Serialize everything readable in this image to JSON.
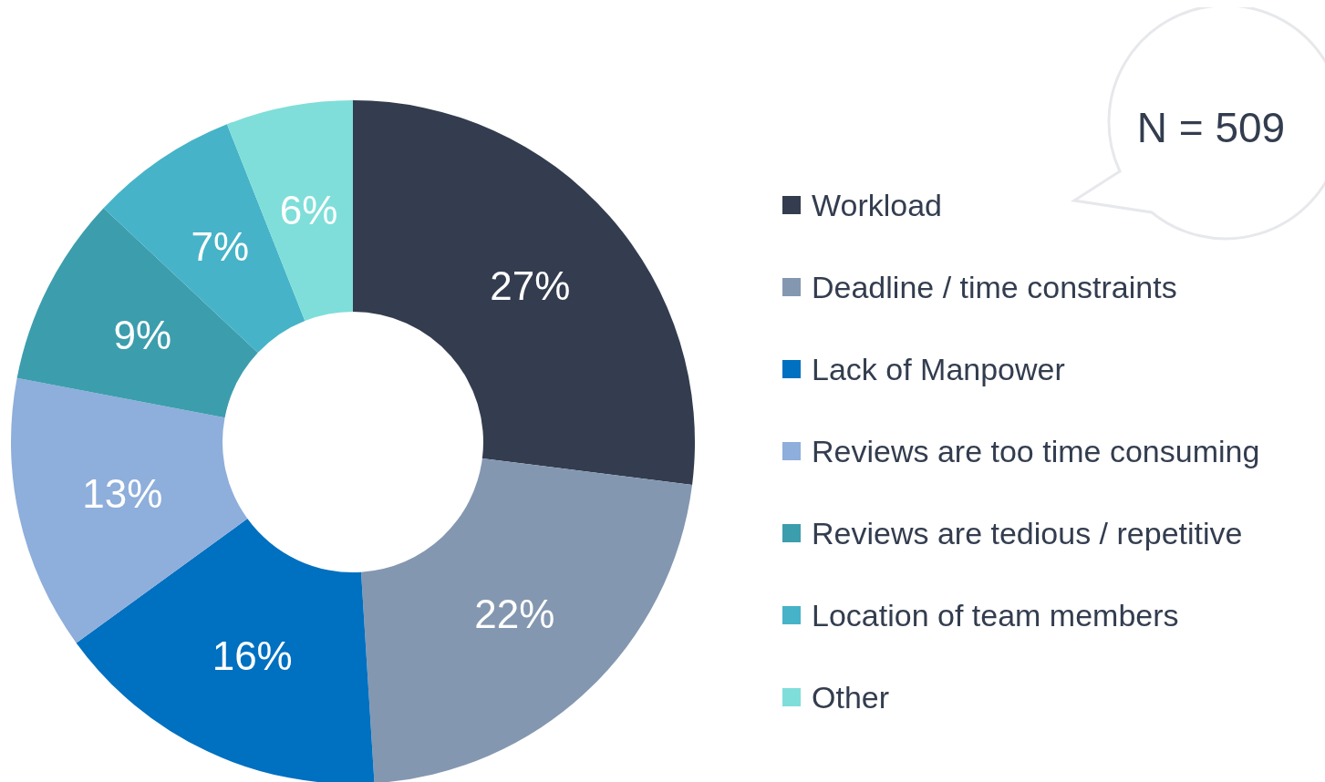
{
  "chart_data": {
    "type": "donut",
    "categories": [
      "Workload",
      "Deadline / time constraints",
      "Lack of Manpower",
      "Reviews are too time consuming",
      "Reviews are tedious / repetitive",
      "Location of team members",
      "Other"
    ],
    "values": [
      27,
      22,
      16,
      13,
      9,
      7,
      6
    ],
    "value_labels": [
      "27%",
      "22%",
      "16%",
      "13%",
      "9%",
      "7%",
      "6%"
    ],
    "colors": [
      "#333d4f",
      "#8497b0",
      "#0070c0",
      "#8eaedb",
      "#3c9dad",
      "#46b3c8",
      "#7fded9"
    ],
    "legend": "right",
    "annotations": [
      "N = 509"
    ]
  }
}
